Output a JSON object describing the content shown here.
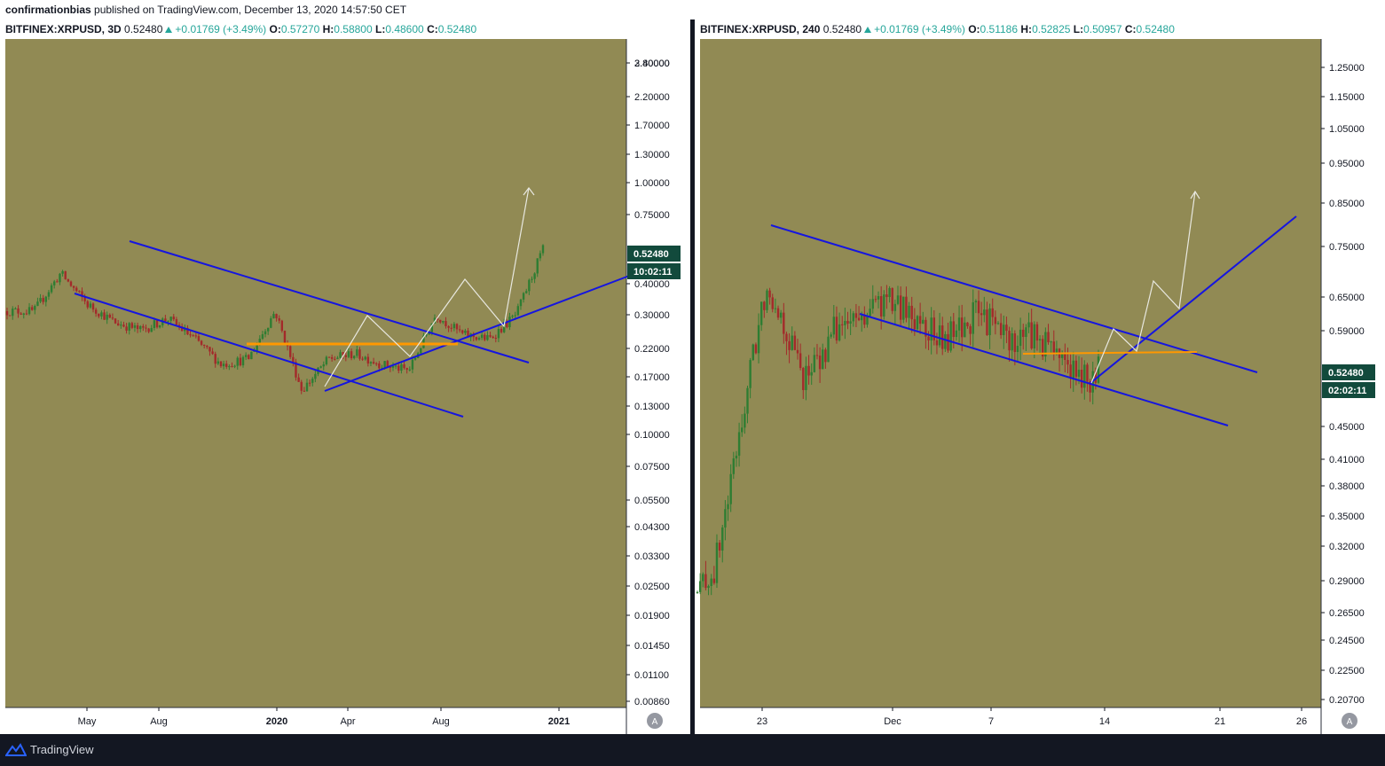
{
  "publication": {
    "author": "confirmationbias",
    "text": "published on TradingView.com, December 13, 2020 14:57:50 CET"
  },
  "brand": "TradingView",
  "colors": {
    "chart_bg": "#918a54",
    "up_candle": "#2e7d32",
    "down_candle": "#a32a2a",
    "channel_lines": "#1515e0",
    "support_line": "#ff9800",
    "projection": "#e8e8e0",
    "price_label": "#124a3c"
  },
  "chart_data": [
    {
      "type": "candlestick",
      "scale": "log",
      "header": {
        "symbol": "BITFINEX:XRPUSD, 3D",
        "last": "0.52480",
        "change": "+0.01769 (+3.49%)",
        "open": "0.57270",
        "high": "0.58800",
        "low": "0.48600",
        "close": "0.52480"
      },
      "price_label": "0.52480",
      "countdown": "10:02:11",
      "y_ticks": [
        "3.40000",
        "2.80000",
        "2.20000",
        "1.70000",
        "1.30000",
        "1.00000",
        "0.75000",
        "0.40000",
        "0.30000",
        "0.22000",
        "0.17000",
        "0.13000",
        "0.10000",
        "0.07500",
        "0.05500",
        "0.04300",
        "0.03300",
        "0.02500",
        "0.01900",
        "0.01450",
        "0.01100",
        "0.00860"
      ],
      "x_ticks": [
        "May",
        "Aug",
        "2020",
        "Apr",
        "Aug",
        "2021"
      ],
      "series": [
        {
          "x": [
            "2019-04",
            "2019-05",
            "2019-06",
            "2019-07",
            "2019-08",
            "2019-09",
            "2019-10",
            "2019-11",
            "2019-12",
            "2020-01",
            "2020-02",
            "2020-03",
            "2020-04",
            "2020-05",
            "2020-06",
            "2020-07",
            "2020-08",
            "2020-09",
            "2020-10",
            "2020-11",
            "2020-12"
          ],
          "values": [
            0.31,
            0.31,
            0.44,
            0.33,
            0.28,
            0.26,
            0.29,
            0.24,
            0.19,
            0.2,
            0.31,
            0.15,
            0.2,
            0.21,
            0.19,
            0.18,
            0.3,
            0.25,
            0.24,
            0.3,
            0.55
          ]
        }
      ]
    },
    {
      "type": "candlestick",
      "scale": "log",
      "header": {
        "symbol": "BITFINEX:XRPUSD, 240",
        "last": "0.52480",
        "change": "+0.01769 (+3.49%)",
        "open": "0.51186",
        "high": "0.52825",
        "low": "0.50957",
        "close": "0.52480"
      },
      "price_label": "0.52480",
      "countdown": "02:02:11",
      "y_ticks": [
        "1.25000",
        "1.15000",
        "1.05000",
        "0.95000",
        "0.85000",
        "0.75000",
        "0.65000",
        "0.59000",
        "0.45000",
        "0.41000",
        "0.38000",
        "0.35000",
        "0.32000",
        "0.29000",
        "0.26500",
        "0.24500",
        "0.22500",
        "0.20700"
      ],
      "x_ticks": [
        "23",
        "Dec",
        "7",
        "14",
        "21",
        "26"
      ],
      "series": [
        {
          "x": [
            "Nov 20",
            "Nov 21",
            "Nov 22",
            "Nov 23",
            "Nov 24",
            "Nov 25",
            "Nov 26",
            "Nov 27",
            "Nov 28",
            "Nov 29",
            "Nov 30",
            "Dec 1",
            "Dec 2",
            "Dec 3",
            "Dec 4",
            "Dec 5",
            "Dec 6",
            "Dec 7",
            "Dec 8",
            "Dec 9",
            "Dec 10",
            "Dec 11",
            "Dec 12",
            "Dec 13"
          ],
          "values": [
            0.28,
            0.3,
            0.39,
            0.52,
            0.68,
            0.6,
            0.52,
            0.54,
            0.6,
            0.6,
            0.63,
            0.64,
            0.62,
            0.61,
            0.57,
            0.59,
            0.62,
            0.6,
            0.57,
            0.59,
            0.57,
            0.55,
            0.51,
            0.525
          ]
        }
      ]
    }
  ]
}
